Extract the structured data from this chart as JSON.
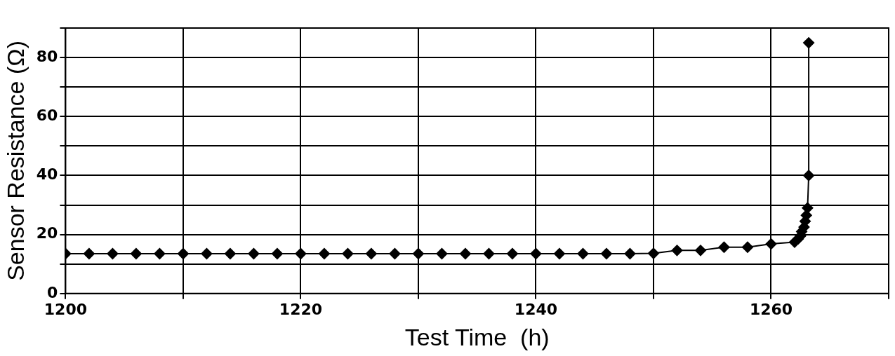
{
  "chart_data": {
    "type": "line",
    "xlabel": "Test Time  (h)",
    "ylabel": "Sensor Resistance (Ω)",
    "x": [
      1200,
      1202,
      1204,
      1206,
      1208,
      1210,
      1212,
      1214,
      1216,
      1218,
      1220,
      1222,
      1224,
      1226,
      1228,
      1230,
      1232,
      1234,
      1236,
      1238,
      1240,
      1242,
      1244,
      1246,
      1248,
      1250,
      1252,
      1254,
      1256,
      1258,
      1260,
      1262,
      1262.3,
      1262.5,
      1262.6,
      1262.8,
      1262.9,
      1263,
      1263.1,
      1263.2,
      1263.2
    ],
    "series": [
      {
        "color": "#000000",
        "values": [
          13.5,
          13.5,
          13.5,
          13.5,
          13.5,
          13.5,
          13.5,
          13.5,
          13.5,
          13.5,
          13.5,
          13.5,
          13.5,
          13.5,
          13.5,
          13.5,
          13.5,
          13.5,
          13.5,
          13.5,
          13.5,
          13.5,
          13.5,
          13.5,
          13.5,
          13.6,
          14.6,
          14.6,
          15.7,
          15.7,
          16.8,
          17.4,
          18.5,
          19.5,
          21,
          22.5,
          24.5,
          26.5,
          29,
          40,
          85
        ]
      }
    ],
    "xlim": [
      1200,
      1270
    ],
    "xticks": [
      1200,
      {
        "value": 1210,
        "label": null
      },
      1220,
      {
        "value": 1230,
        "label": null
      },
      1240,
      {
        "value": 1250,
        "label": null
      },
      1260,
      {
        "value": 1270,
        "label": null
      }
    ],
    "ylim": [
      0,
      90
    ],
    "yticks": [
      0,
      {
        "value": 10,
        "label": null
      },
      20,
      {
        "value": 30,
        "label": null
      },
      40,
      {
        "value": 50,
        "label": null
      },
      60,
      {
        "value": 70,
        "label": null
      },
      80,
      {
        "value": 90,
        "label": null
      }
    ],
    "grid": true,
    "marker": "diamond",
    "line_style": "solid"
  }
}
